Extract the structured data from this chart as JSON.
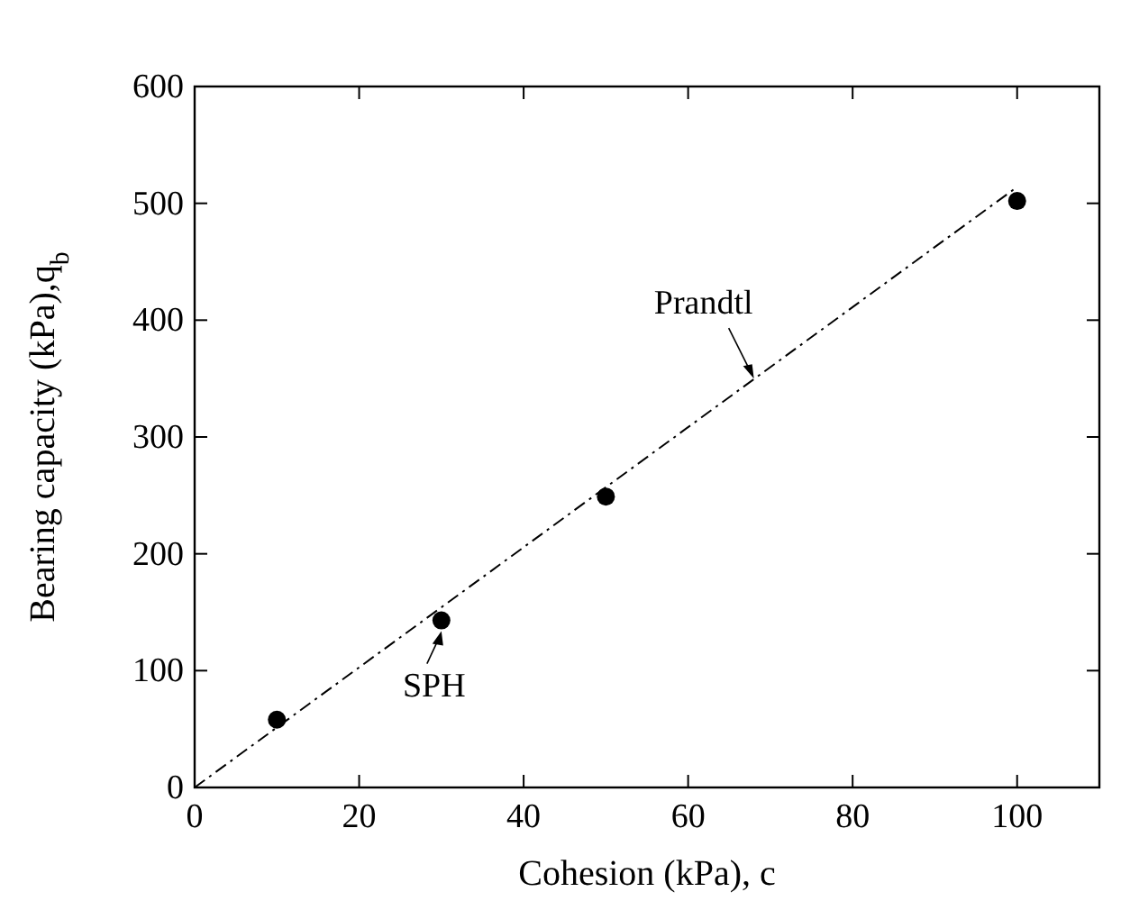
{
  "chart_data": {
    "type": "scatter",
    "xlabel": "Cohesion (kPa), c",
    "ylabel": "Bearing capacity (kPa),q$_{b}$",
    "xlim": [
      0,
      110
    ],
    "ylim": [
      0,
      600
    ],
    "xticks": [
      0,
      20,
      40,
      60,
      80,
      100
    ],
    "yticks": [
      0,
      100,
      200,
      300,
      400,
      500,
      600
    ],
    "grid": false,
    "annotations": [
      {
        "text": "SPH",
        "x": 30,
        "y": 143
      },
      {
        "text": "Prandtl",
        "x": 68,
        "y": 350
      }
    ],
    "series": [
      {
        "color": "#000000",
        "marker": "circle",
        "x": [
          10,
          30,
          50,
          100
        ],
        "values": [
          58,
          143,
          249,
          502
        ]
      },
      {
        "type": "line",
        "color": "#000000",
        "marker": "none",
        "line_style": "dashdot",
        "x": [
          0,
          100
        ],
        "values": [
          0,
          514
        ]
      }
    ]
  }
}
